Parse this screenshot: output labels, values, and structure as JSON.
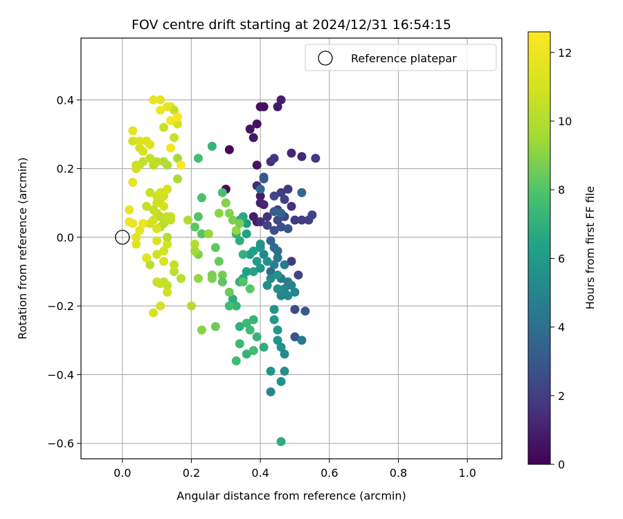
{
  "chart_data": {
    "type": "scatter",
    "title": "FOV centre drift starting at 2024/12/31 16:54:15",
    "xlabel": "Angular distance from reference (arcmin)",
    "ylabel": "Rotation from reference (arcmin)",
    "xlim": [
      -0.12,
      1.1
    ],
    "ylim": [
      -0.645,
      0.58
    ],
    "xticks": [
      0.0,
      0.2,
      0.4,
      0.6,
      0.8,
      1.0
    ],
    "xtick_labels": [
      "0.0",
      "0.2",
      "0.4",
      "0.6",
      "0.8",
      "1.0"
    ],
    "yticks": [
      -0.6,
      -0.4,
      -0.2,
      0.0,
      0.2,
      0.4
    ],
    "ytick_labels": [
      "−0.6",
      "−0.4",
      "−0.2",
      "0.0",
      "0.2",
      "0.4"
    ],
    "grid": true,
    "legend": {
      "placement": "top-right",
      "entries": [
        "Reference platepar"
      ]
    },
    "reference_point": {
      "x": 0.0,
      "y": 0.0,
      "label": "Reference platepar"
    },
    "colorbar": {
      "label": "Hours from first FF file",
      "range": [
        0,
        12.6
      ],
      "ticks": [
        0,
        2,
        4,
        6,
        8,
        10,
        12
      ],
      "tick_labels": [
        "0",
        "2",
        "4",
        "6",
        "8",
        "10",
        "12"
      ],
      "colormap": "viridis"
    },
    "points": [
      [
        0.31,
        0.255,
        0.2
      ],
      [
        0.3,
        0.14,
        0.3
      ],
      [
        0.4,
        0.38,
        0.4
      ],
      [
        0.41,
        0.38,
        0.5
      ],
      [
        0.45,
        0.38,
        0.8
      ],
      [
        0.46,
        0.4,
        1.0
      ],
      [
        0.37,
        0.315,
        0.6
      ],
      [
        0.38,
        0.29,
        0.7
      ],
      [
        0.39,
        0.33,
        0.5
      ],
      [
        0.39,
        0.21,
        0.6
      ],
      [
        0.39,
        0.045,
        0.7
      ],
      [
        0.4,
        0.12,
        0.8
      ],
      [
        0.38,
        0.06,
        0.9
      ],
      [
        0.4,
        0.1,
        1.1
      ],
      [
        0.41,
        0.095,
        1.2
      ],
      [
        0.39,
        0.15,
        1.3
      ],
      [
        0.4,
        0.045,
        1.5
      ],
      [
        0.42,
        0.06,
        1.6
      ],
      [
        0.43,
        0.22,
        1.4
      ],
      [
        0.44,
        0.23,
        1.7
      ],
      [
        0.49,
        0.245,
        1.2
      ],
      [
        0.52,
        0.235,
        1.3
      ],
      [
        0.56,
        0.23,
        1.8
      ],
      [
        0.48,
        0.14,
        1.9
      ],
      [
        0.46,
        0.13,
        2.0
      ],
      [
        0.47,
        0.11,
        2.1
      ],
      [
        0.45,
        0.08,
        2.2
      ],
      [
        0.44,
        0.12,
        2.3
      ],
      [
        0.49,
        0.09,
        1.6
      ],
      [
        0.5,
        0.05,
        1.8
      ],
      [
        0.52,
        0.05,
        2.0
      ],
      [
        0.54,
        0.05,
        2.1
      ],
      [
        0.55,
        0.065,
        2.2
      ],
      [
        0.47,
        0.06,
        2.4
      ],
      [
        0.45,
        0.05,
        2.5
      ],
      [
        0.44,
        0.02,
        2.6
      ],
      [
        0.42,
        0.035,
        2.3
      ],
      [
        0.46,
        0.03,
        2.7
      ],
      [
        0.48,
        0.025,
        2.8
      ],
      [
        0.49,
        -0.07,
        2.0
      ],
      [
        0.51,
        -0.11,
        2.3
      ],
      [
        0.5,
        -0.21,
        2.5
      ],
      [
        0.53,
        -0.215,
        3.0
      ],
      [
        0.5,
        -0.29,
        2.8
      ],
      [
        0.52,
        -0.3,
        4.5
      ],
      [
        0.52,
        0.13,
        3.6
      ],
      [
        0.41,
        0.17,
        3.2
      ],
      [
        0.4,
        0.14,
        3.8
      ],
      [
        0.41,
        0.175,
        3.0
      ],
      [
        0.44,
        0.075,
        3.3
      ],
      [
        0.46,
        0.07,
        3.5
      ],
      [
        0.43,
        -0.01,
        3.6
      ],
      [
        0.44,
        -0.03,
        3.7
      ],
      [
        0.45,
        -0.04,
        4.0
      ],
      [
        0.45,
        -0.06,
        4.2
      ],
      [
        0.47,
        -0.08,
        4.5
      ],
      [
        0.43,
        -0.1,
        3.8
      ],
      [
        0.46,
        -0.12,
        4.3
      ],
      [
        0.48,
        -0.13,
        4.6
      ],
      [
        0.49,
        -0.14,
        4.9
      ],
      [
        0.5,
        -0.16,
        5.0
      ],
      [
        0.48,
        -0.17,
        5.2
      ],
      [
        0.47,
        -0.15,
        5.0
      ],
      [
        0.44,
        -0.08,
        4.8
      ],
      [
        0.43,
        -0.12,
        5.3
      ],
      [
        0.42,
        -0.14,
        5.4
      ],
      [
        0.45,
        -0.11,
        5.6
      ],
      [
        0.45,
        -0.15,
        5.5
      ],
      [
        0.46,
        -0.17,
        5.1
      ],
      [
        0.44,
        -0.21,
        5.7
      ],
      [
        0.44,
        -0.24,
        5.9
      ],
      [
        0.45,
        -0.27,
        5.8
      ],
      [
        0.45,
        -0.3,
        5.6
      ],
      [
        0.46,
        -0.32,
        5.5
      ],
      [
        0.47,
        -0.34,
        5.2
      ],
      [
        0.43,
        -0.39,
        5.8
      ],
      [
        0.47,
        -0.39,
        5.4
      ],
      [
        0.43,
        -0.45,
        5.0
      ],
      [
        0.46,
        -0.42,
        5.6
      ],
      [
        0.46,
        -0.595,
        6.8
      ],
      [
        0.41,
        -0.05,
        5.0
      ],
      [
        0.42,
        -0.07,
        5.5
      ],
      [
        0.4,
        -0.09,
        5.8
      ],
      [
        0.39,
        -0.07,
        6.1
      ],
      [
        0.37,
        -0.05,
        6.2
      ],
      [
        0.36,
        -0.1,
        6.3
      ],
      [
        0.35,
        -0.12,
        6.5
      ],
      [
        0.38,
        -0.1,
        6.4
      ],
      [
        0.4,
        -0.03,
        5.9
      ],
      [
        0.4,
        -0.02,
        5.7
      ],
      [
        0.38,
        -0.04,
        6.3
      ],
      [
        0.36,
        0.04,
        6.1
      ],
      [
        0.35,
        0.06,
        6.6
      ],
      [
        0.34,
        0.05,
        6.8
      ],
      [
        0.36,
        0.01,
        6.4
      ],
      [
        0.33,
        0.01,
        7.0
      ],
      [
        0.34,
        -0.01,
        6.9
      ],
      [
        0.35,
        -0.05,
        7.1
      ],
      [
        0.34,
        -0.13,
        7.0
      ],
      [
        0.32,
        -0.18,
        6.8
      ],
      [
        0.33,
        -0.2,
        7.2
      ],
      [
        0.34,
        -0.26,
        7.0
      ],
      [
        0.36,
        -0.25,
        7.4
      ],
      [
        0.37,
        -0.27,
        7.5
      ],
      [
        0.38,
        -0.24,
        7.3
      ],
      [
        0.36,
        -0.34,
        7.1
      ],
      [
        0.38,
        -0.33,
        7.5
      ],
      [
        0.39,
        -0.29,
        7.2
      ],
      [
        0.41,
        -0.32,
        6.9
      ],
      [
        0.34,
        -0.31,
        7.4
      ],
      [
        0.33,
        -0.36,
        7.6
      ],
      [
        0.31,
        -0.2,
        7.6
      ],
      [
        0.26,
        0.265,
        7.2
      ],
      [
        0.29,
        0.13,
        7.8
      ],
      [
        0.22,
        0.23,
        7.7
      ],
      [
        0.23,
        0.115,
        7.9
      ],
      [
        0.22,
        0.06,
        8.0
      ],
      [
        0.23,
        0.01,
        8.1
      ],
      [
        0.21,
        0.03,
        8.2
      ],
      [
        0.27,
        -0.03,
        8.3
      ],
      [
        0.28,
        -0.07,
        8.4
      ],
      [
        0.29,
        -0.11,
        8.6
      ],
      [
        0.31,
        -0.16,
        8.5
      ],
      [
        0.29,
        -0.13,
        8.2
      ],
      [
        0.26,
        -0.11,
        8.7
      ],
      [
        0.26,
        -0.12,
        8.8
      ],
      [
        0.22,
        -0.05,
        8.9
      ],
      [
        0.23,
        -0.27,
        9.0
      ],
      [
        0.22,
        -0.12,
        9.2
      ],
      [
        0.27,
        -0.26,
        8.5
      ],
      [
        0.35,
        -0.13,
        8.0
      ],
      [
        0.37,
        -0.15,
        8.1
      ],
      [
        0.3,
        0.1,
        8.9
      ],
      [
        0.33,
        0.02,
        9.2
      ],
      [
        0.34,
        0.04,
        8.7
      ],
      [
        0.16,
        0.17,
        9.8
      ],
      [
        0.16,
        0.23,
        9.6
      ],
      [
        0.19,
        0.05,
        9.9
      ],
      [
        0.21,
        -0.02,
        10.0
      ],
      [
        0.2,
        -0.2,
        10.1
      ],
      [
        0.17,
        -0.12,
        10.2
      ],
      [
        0.15,
        -0.1,
        10.3
      ],
      [
        0.15,
        -0.08,
        10.5
      ],
      [
        0.13,
        -0.14,
        10.4
      ],
      [
        0.12,
        -0.13,
        10.5
      ],
      [
        0.11,
        -0.135,
        10.6
      ],
      [
        0.1,
        -0.13,
        10.7
      ],
      [
        0.13,
        -0.16,
        10.8
      ],
      [
        0.11,
        -0.2,
        10.9
      ],
      [
        0.09,
        -0.22,
        11.0
      ],
      [
        0.08,
        -0.08,
        10.2
      ],
      [
        0.1,
        -0.05,
        10.8
      ],
      [
        0.12,
        -0.04,
        10.9
      ],
      [
        0.13,
        -0.02,
        11.0
      ],
      [
        0.12,
        -0.07,
        11.1
      ],
      [
        0.1,
        -0.01,
        11.2
      ],
      [
        0.04,
        -0.02,
        11.3
      ],
      [
        0.04,
        0.0,
        11.4
      ],
      [
        0.07,
        -0.06,
        11.5
      ],
      [
        0.05,
        0.02,
        11.6
      ],
      [
        0.03,
        0.04,
        11.7
      ],
      [
        0.02,
        0.08,
        11.8
      ],
      [
        0.03,
        0.16,
        11.6
      ],
      [
        0.02,
        0.045,
        11.9
      ],
      [
        0.06,
        0.04,
        11.0
      ],
      [
        0.08,
        0.04,
        10.8
      ],
      [
        0.07,
        0.09,
        10.5
      ],
      [
        0.09,
        0.08,
        10.4
      ],
      [
        0.1,
        0.07,
        10.6
      ],
      [
        0.1,
        0.1,
        10.7
      ],
      [
        0.11,
        0.11,
        10.8
      ],
      [
        0.12,
        0.12,
        10.9
      ],
      [
        0.13,
        0.14,
        11.1
      ],
      [
        0.12,
        0.09,
        11.0
      ],
      [
        0.11,
        0.06,
        10.3
      ],
      [
        0.12,
        0.04,
        10.2
      ],
      [
        0.13,
        0.06,
        10.4
      ],
      [
        0.14,
        0.05,
        10.5
      ],
      [
        0.14,
        0.06,
        10.6
      ],
      [
        0.11,
        0.03,
        10.1
      ],
      [
        0.13,
        0.21,
        9.9
      ],
      [
        0.12,
        0.22,
        10.0
      ],
      [
        0.1,
        0.22,
        10.2
      ],
      [
        0.09,
        0.21,
        10.3
      ],
      [
        0.08,
        0.23,
        10.4
      ],
      [
        0.06,
        0.22,
        10.5
      ],
      [
        0.05,
        0.21,
        10.6
      ],
      [
        0.04,
        0.2,
        10.7
      ],
      [
        0.04,
        0.21,
        10.8
      ],
      [
        0.03,
        0.28,
        10.9
      ],
      [
        0.05,
        0.26,
        11.0
      ],
      [
        0.06,
        0.25,
        11.1
      ],
      [
        0.07,
        0.28,
        11.2
      ],
      [
        0.08,
        0.27,
        11.3
      ],
      [
        0.05,
        0.28,
        11.4
      ],
      [
        0.03,
        0.31,
        11.5
      ],
      [
        0.12,
        0.32,
        10.6
      ],
      [
        0.15,
        0.29,
        10.7
      ],
      [
        0.14,
        0.38,
        11.5
      ],
      [
        0.15,
        0.37,
        10.5
      ],
      [
        0.16,
        0.33,
        11.0
      ],
      [
        0.11,
        0.4,
        11.6
      ],
      [
        0.13,
        0.38,
        11.7
      ],
      [
        0.09,
        0.4,
        11.8
      ],
      [
        0.11,
        0.37,
        12.0
      ],
      [
        0.14,
        0.34,
        12.2
      ],
      [
        0.16,
        0.35,
        12.3
      ],
      [
        0.14,
        0.26,
        12.2
      ],
      [
        0.17,
        0.21,
        12.4
      ],
      [
        0.13,
        0.0,
        10.1
      ],
      [
        0.06,
        0.04,
        11.9
      ],
      [
        0.1,
        0.025,
        11.2
      ],
      [
        0.09,
        0.05,
        10.9
      ],
      [
        0.08,
        0.13,
        10.6
      ],
      [
        0.1,
        0.12,
        10.8
      ],
      [
        0.11,
        0.13,
        11.0
      ],
      [
        0.21,
        -0.04,
        9.5
      ],
      [
        0.25,
        0.01,
        9.3
      ],
      [
        0.28,
        0.07,
        9.1
      ],
      [
        0.32,
        0.05,
        8.8
      ],
      [
        0.31,
        0.07,
        8.9
      ]
    ]
  }
}
